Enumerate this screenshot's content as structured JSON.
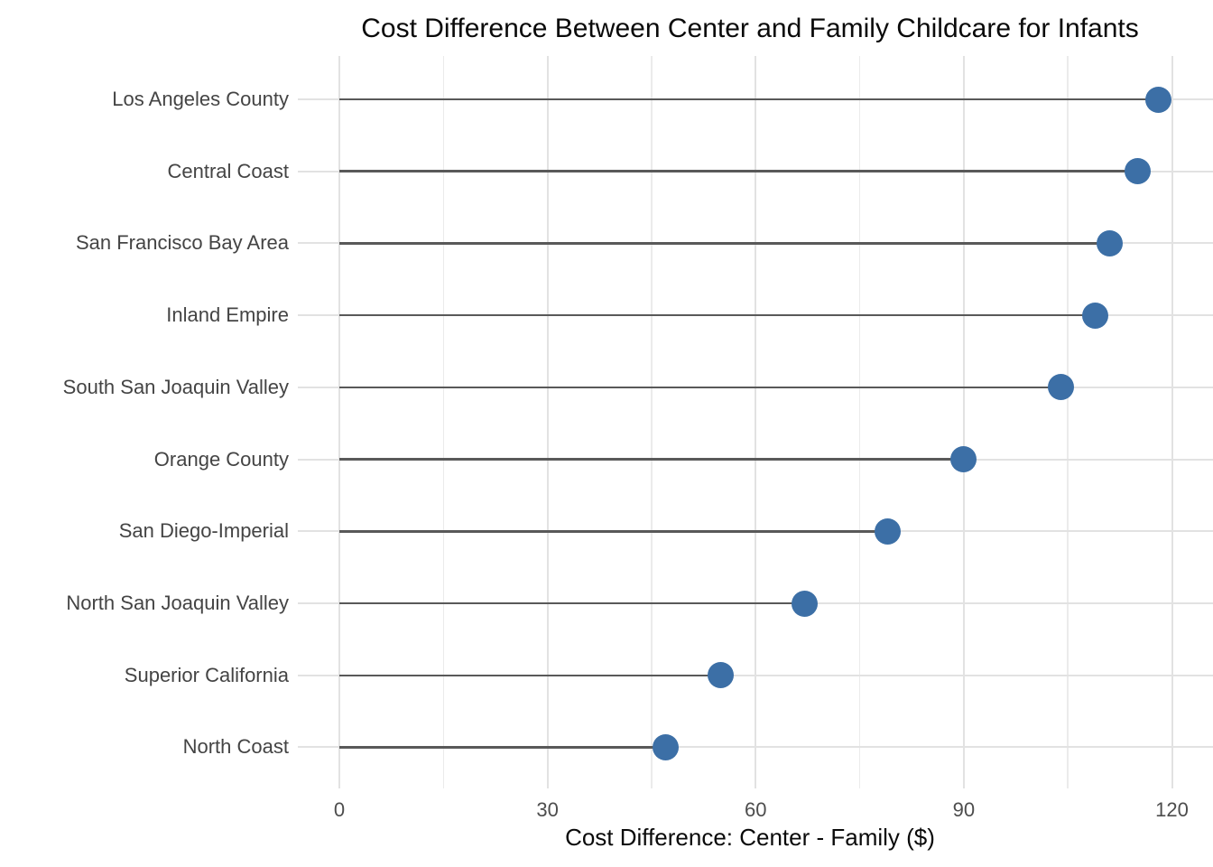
{
  "chart_data": {
    "type": "scatter",
    "variant": "horizontal-lollipop",
    "title": "Cost Difference Between Center and Family Childcare for Infants",
    "xlabel": "Cost Difference: Center - Family ($)",
    "ylabel": "",
    "categories": [
      "Los Angeles County",
      "Central Coast",
      "San Francisco Bay Area",
      "Inland Empire",
      "South San Joaquin Valley",
      "Orange County",
      "San Diego-Imperial",
      "North San Joaquin Valley",
      "Superior California",
      "North Coast"
    ],
    "values": [
      118,
      115,
      111,
      109,
      104,
      90,
      79,
      67,
      55,
      47
    ],
    "xlim": [
      0,
      126
    ],
    "x_major_ticks": [
      0,
      30,
      60,
      90,
      120
    ],
    "x_minor_ticks": [
      15,
      45,
      75,
      105
    ],
    "x_tick_labels": [
      "0",
      "30",
      "60",
      "90",
      "120"
    ],
    "grid": true,
    "legend": false,
    "colors": {
      "dot": "#3C6FA6",
      "stem": "#595959",
      "grid_major": "#E2E2E2",
      "grid_minor": "#EBEBEB",
      "axis_tick": "#E2E2E2",
      "axis_text": "#444444",
      "title_text": "#0A0A0A",
      "background": "#FFFFFF"
    }
  }
}
